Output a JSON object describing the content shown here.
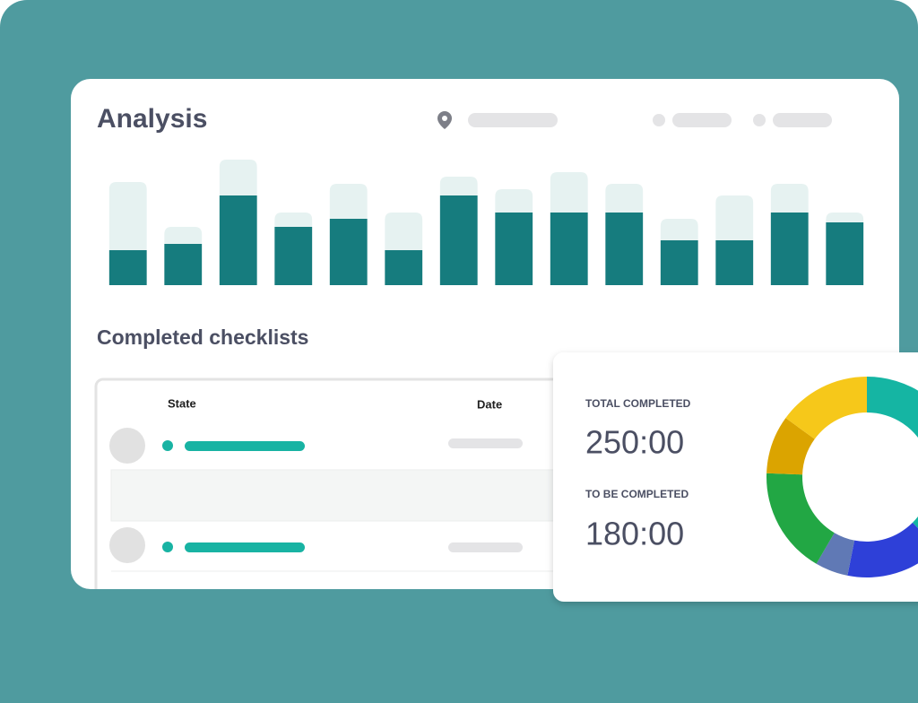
{
  "header": {
    "title": "Analysis"
  },
  "chart_data": [
    {
      "type": "bar",
      "stacked": true,
      "ylim": [
        0,
        140
      ],
      "series": [
        {
          "color": "#167c7e",
          "values": [
            39,
            46,
            100,
            65,
            74,
            39,
            100,
            81,
            81,
            81,
            50,
            50,
            81,
            70
          ]
        },
        {
          "color": "#e6f2f1",
          "values": [
            76,
            19,
            40,
            16,
            39,
            42,
            21,
            26,
            45,
            32,
            24,
            50,
            32,
            11
          ]
        }
      ]
    },
    {
      "type": "pie",
      "donut": true,
      "values": [
        37.5,
        15.6,
        5.3,
        17.2,
        9.4,
        15.0
      ],
      "colors": [
        "#15b5a3",
        "#2e40d8",
        "#6079b5",
        "#22a744",
        "#dba400",
        "#f6c81a"
      ]
    }
  ],
  "section": {
    "title": "Completed checklists"
  },
  "table": {
    "columns": [
      "State",
      "Date"
    ]
  },
  "stats": [
    {
      "label": "TOTAL COMPLETED",
      "value": "250:00"
    },
    {
      "label": "TO BE COMPLETED",
      "value": "180:00"
    }
  ]
}
